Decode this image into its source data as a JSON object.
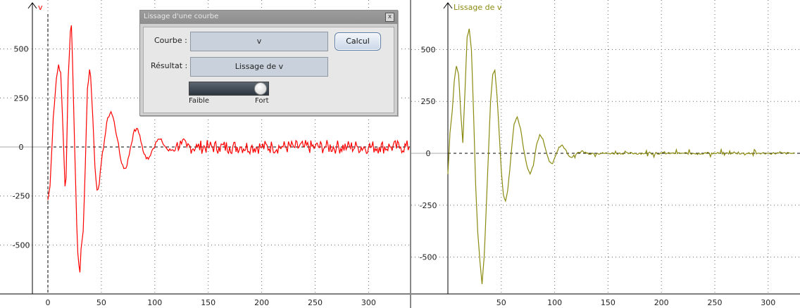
{
  "dialog": {
    "title": "Lissage d'une courbe",
    "close_glyph": "x",
    "curve_label": "Courbe :",
    "curve_value": "v",
    "calc_label": "Calcul",
    "result_label": "Résultat :",
    "result_value": "Lissage de v",
    "slider_min_label": "Faible",
    "slider_max_label": "Fort",
    "slider_level": 1.0
  },
  "chart_data": [
    {
      "type": "line",
      "title": "v",
      "color": "#ff0000",
      "xlim": [
        -10,
        340
      ],
      "ylim": [
        -700,
        650
      ],
      "x_ticks": [
        0,
        50,
        100,
        150,
        200,
        250,
        300
      ],
      "y_ticks": [
        500,
        250,
        0,
        -250,
        -500
      ],
      "grid": true,
      "series": [
        {
          "values": [
            [
              0,
              -270
            ],
            [
              2,
              -200
            ],
            [
              5,
              150
            ],
            [
              8,
              350
            ],
            [
              10,
              420
            ],
            [
              12,
              380
            ],
            [
              14,
              100
            ],
            [
              16,
              -200
            ],
            [
              17,
              -160
            ],
            [
              19,
              350
            ],
            [
              21,
              590
            ],
            [
              22,
              620
            ],
            [
              23,
              450
            ],
            [
              25,
              0
            ],
            [
              27,
              -400
            ],
            [
              28,
              -540
            ],
            [
              30,
              -640
            ],
            [
              31,
              -520
            ],
            [
              33,
              -430
            ],
            [
              35,
              -100
            ],
            [
              37,
              300
            ],
            [
              39,
              395
            ],
            [
              40,
              360
            ],
            [
              42,
              150
            ],
            [
              44,
              -100
            ],
            [
              46,
              -220
            ],
            [
              48,
              -190
            ],
            [
              50,
              -80
            ],
            [
              53,
              40
            ],
            [
              56,
              150
            ],
            [
              59,
              180
            ],
            [
              62,
              130
            ],
            [
              65,
              40
            ],
            [
              68,
              -60
            ],
            [
              71,
              -110
            ],
            [
              74,
              -95
            ],
            [
              77,
              -10
            ],
            [
              80,
              70
            ],
            [
              83,
              95
            ],
            [
              86,
              60
            ],
            [
              89,
              -20
            ],
            [
              92,
              -60
            ],
            [
              95,
              -50
            ],
            [
              98,
              -10
            ],
            [
              101,
              25
            ],
            [
              104,
              40
            ],
            [
              107,
              25
            ],
            [
              110,
              0
            ],
            [
              113,
              -20
            ],
            [
              116,
              -15
            ],
            [
              120,
              5
            ],
            [
              125,
              15
            ],
            [
              130,
              0
            ],
            [
              140,
              0
            ],
            [
              150,
              0
            ],
            [
              160,
              0
            ],
            [
              170,
              0
            ],
            [
              180,
              0
            ],
            [
              190,
              0
            ],
            [
              200,
              0
            ],
            [
              210,
              0
            ],
            [
              220,
              0
            ],
            [
              230,
              0
            ],
            [
              240,
              0
            ],
            [
              250,
              0
            ],
            [
              260,
              0
            ],
            [
              270,
              0
            ],
            [
              280,
              0
            ],
            [
              290,
              0
            ],
            [
              300,
              0
            ],
            [
              310,
              0
            ],
            [
              320,
              0
            ],
            [
              330,
              0
            ],
            [
              338,
              0
            ]
          ],
          "noise_amplitude": 35
        }
      ]
    },
    {
      "type": "line",
      "title": "Lissage de v",
      "color": "#8a8a10",
      "xlim": [
        0,
        325
      ],
      "ylim": [
        -700,
        650
      ],
      "x_ticks": [
        50,
        100,
        150,
        200,
        250,
        300
      ],
      "y_ticks": [
        500,
        250,
        0,
        -250,
        -500
      ],
      "grid": true,
      "series": [
        {
          "values": [
            [
              0,
              -100
            ],
            [
              2,
              100
            ],
            [
              4,
              200
            ],
            [
              6,
              350
            ],
            [
              8,
              420
            ],
            [
              10,
              380
            ],
            [
              12,
              200
            ],
            [
              14,
              50
            ],
            [
              16,
              300
            ],
            [
              18,
              560
            ],
            [
              20,
              600
            ],
            [
              22,
              500
            ],
            [
              24,
              200
            ],
            [
              26,
              -150
            ],
            [
              28,
              -380
            ],
            [
              30,
              -520
            ],
            [
              32,
              -630
            ],
            [
              34,
              -500
            ],
            [
              36,
              -250
            ],
            [
              38,
              0
            ],
            [
              40,
              250
            ],
            [
              42,
              380
            ],
            [
              44,
              400
            ],
            [
              46,
              280
            ],
            [
              48,
              100
            ],
            [
              50,
              -80
            ],
            [
              52,
              -200
            ],
            [
              54,
              -230
            ],
            [
              56,
              -180
            ],
            [
              58,
              -80
            ],
            [
              60,
              40
            ],
            [
              62,
              140
            ],
            [
              65,
              175
            ],
            [
              68,
              120
            ],
            [
              71,
              20
            ],
            [
              74,
              -60
            ],
            [
              77,
              -100
            ],
            [
              80,
              -60
            ],
            [
              83,
              40
            ],
            [
              86,
              90
            ],
            [
              89,
              70
            ],
            [
              92,
              10
            ],
            [
              95,
              -40
            ],
            [
              98,
              -50
            ],
            [
              101,
              -10
            ],
            [
              104,
              30
            ],
            [
              107,
              40
            ],
            [
              110,
              20
            ],
            [
              113,
              -10
            ],
            [
              116,
              -20
            ],
            [
              120,
              -5
            ],
            [
              125,
              10
            ],
            [
              130,
              0
            ],
            [
              140,
              0
            ],
            [
              150,
              0
            ],
            [
              160,
              0
            ],
            [
              170,
              0
            ],
            [
              180,
              0
            ],
            [
              190,
              0
            ],
            [
              200,
              0
            ],
            [
              210,
              0
            ],
            [
              220,
              0
            ],
            [
              230,
              0
            ],
            [
              240,
              0
            ],
            [
              250,
              0
            ],
            [
              260,
              0
            ],
            [
              270,
              0
            ],
            [
              280,
              0
            ],
            [
              290,
              0
            ],
            [
              300,
              0
            ],
            [
              310,
              0
            ],
            [
              325,
              0
            ]
          ],
          "noise_amplitude": 12
        }
      ]
    }
  ]
}
